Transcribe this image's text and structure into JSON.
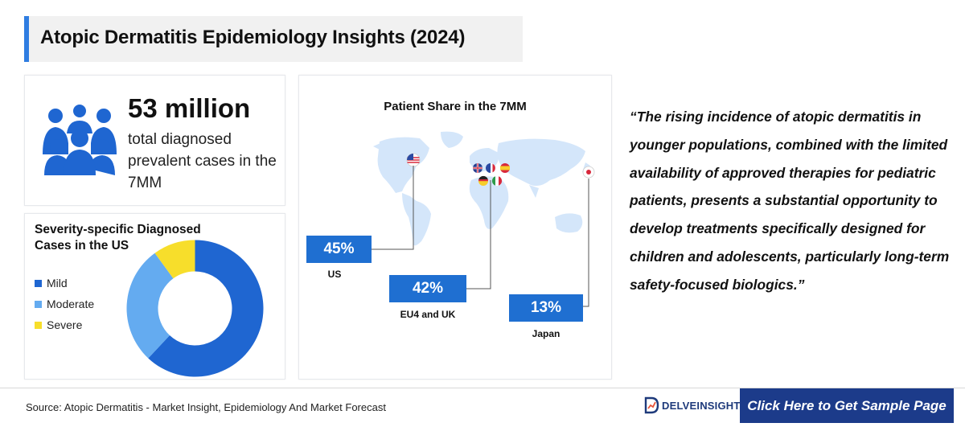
{
  "header": {
    "title": "Atopic Dermatitis Epidemiology Insights (2024)"
  },
  "stat": {
    "value": "53 million",
    "description": "total diagnosed prevalent cases in the 7MM"
  },
  "severity": {
    "title": "Severity-specific Diagnosed Cases in the US",
    "items": [
      {
        "label": "Mild",
        "color": "#1f66d1"
      },
      {
        "label": "Moderate",
        "color": "#64abf0"
      },
      {
        "label": "Severe",
        "color": "#f7de2b"
      }
    ]
  },
  "chart_data": {
    "type": "pie",
    "title": "Severity-specific Diagnosed Cases in the US",
    "donut": true,
    "categories": [
      "Mild",
      "Moderate",
      "Severe"
    ],
    "values": [
      62,
      28,
      10
    ],
    "unit": "%",
    "colors": [
      "#1f66d1",
      "#64abf0",
      "#f7de2b"
    ]
  },
  "map": {
    "title": "Patient Share in the 7MM",
    "regions": [
      {
        "value": "45%",
        "label": "US"
      },
      {
        "value": "42%",
        "label": "EU4 and UK"
      },
      {
        "value": "13%",
        "label": "Japan"
      }
    ]
  },
  "quote": {
    "text": "“The rising incidence of atopic dermatitis in younger populations, combined with the limited availability of approved therapies for pediatric patients, presents a substantial opportunity to develop treatments specifically designed for children and adolescents, particularly long-term safety-focused biologics.”"
  },
  "footer": {
    "source": "Source: Atopic Dermatitis - Market Insight, Epidemiology And Market Forecast",
    "brand": "DELVEINSIGHT",
    "cta": "Click Here to Get Sample Page"
  },
  "icons": {
    "people": "people-group-icon",
    "map": "world-map-icon",
    "flags": [
      "us-flag-icon",
      "uk-flag-icon",
      "france-flag-icon",
      "spain-flag-icon",
      "germany-flag-icon",
      "italy-flag-icon",
      "japan-flag-icon"
    ],
    "brand": "delveinsight-logo-icon"
  }
}
